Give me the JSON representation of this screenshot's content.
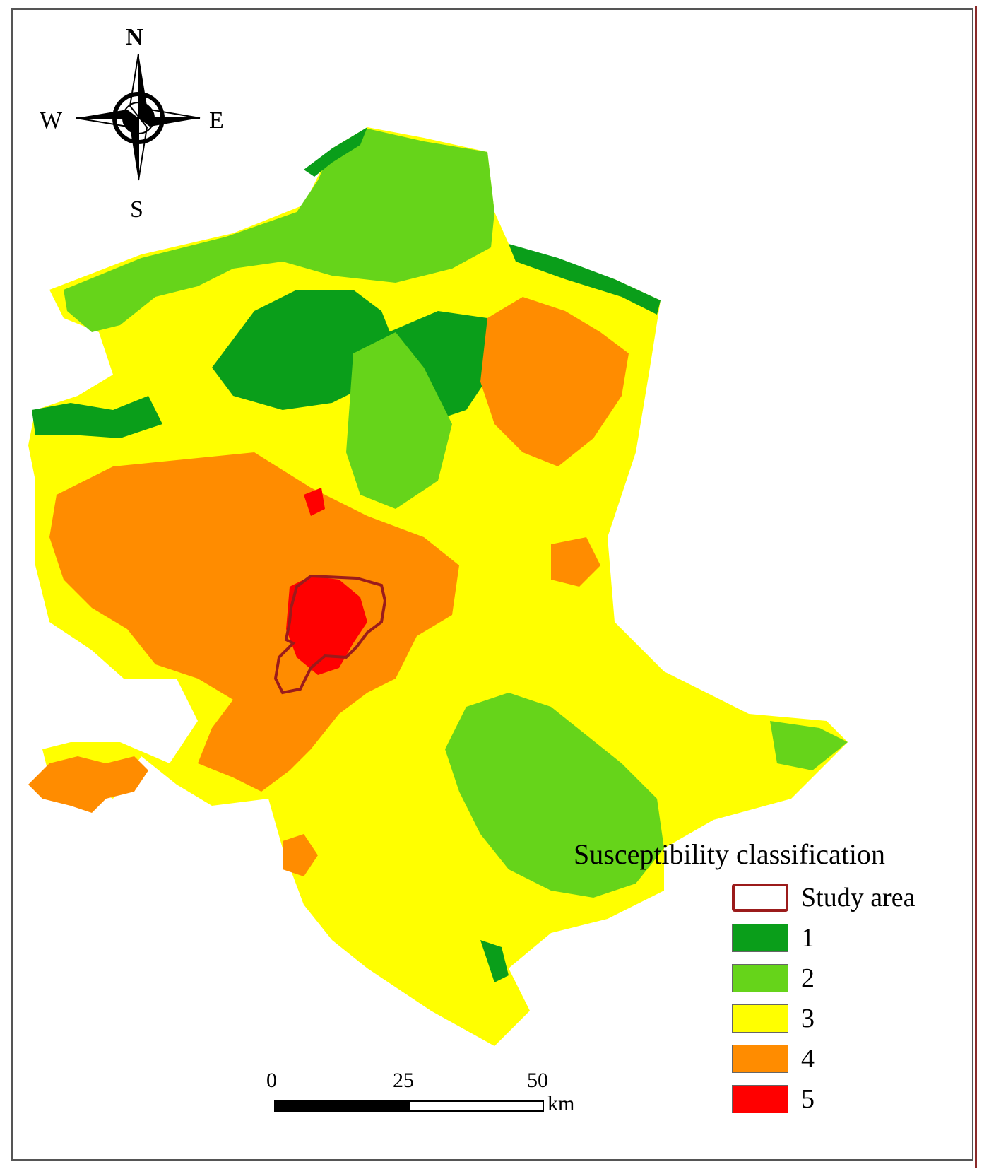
{
  "compass": {
    "north": "N",
    "south": "S",
    "east": "E",
    "west": "W"
  },
  "legend": {
    "title": "Susceptibility classification",
    "items": [
      {
        "label": "Study area",
        "color": "#ffffff",
        "border": "#9b1b1b"
      },
      {
        "label": "1",
        "color": "#0a9e1a",
        "border": "#666666"
      },
      {
        "label": "2",
        "color": "#66d41a",
        "border": "#666666"
      },
      {
        "label": "3",
        "color": "#ffff00",
        "border": "#666666"
      },
      {
        "label": "4",
        "color": "#ff8c00",
        "border": "#666666"
      },
      {
        "label": "5",
        "color": "#ff0000",
        "border": "#666666"
      }
    ]
  },
  "scale_bar": {
    "ticks": [
      "0",
      "25",
      "50"
    ],
    "unit": "km"
  }
}
